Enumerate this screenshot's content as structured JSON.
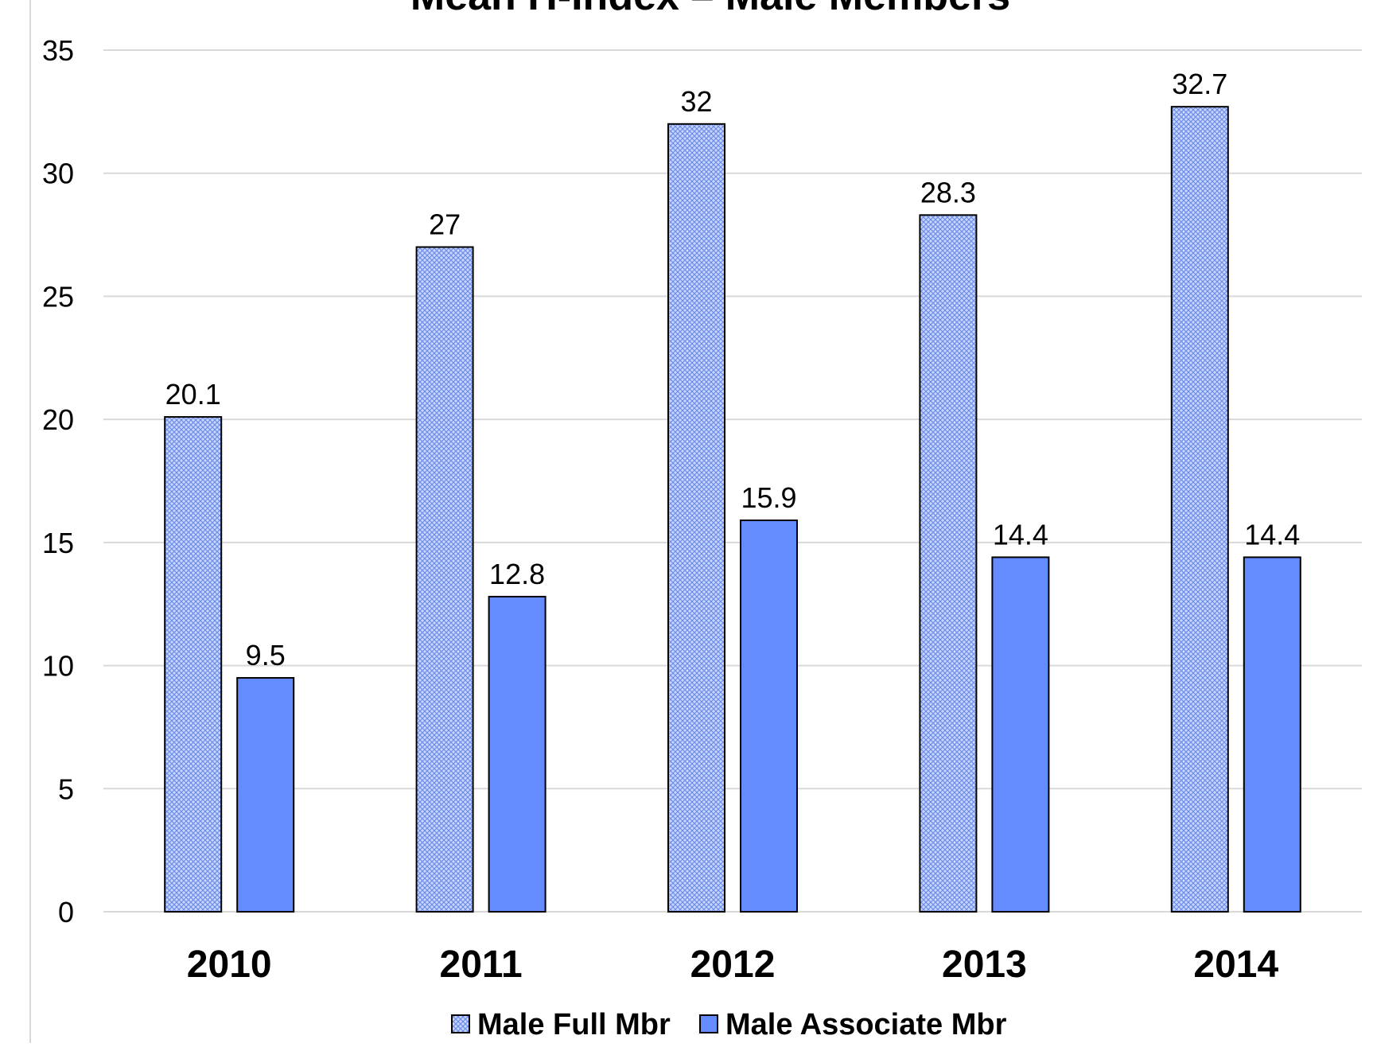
{
  "chart_data": {
    "type": "bar",
    "title": "Mean H-Index – Male Members",
    "categories": [
      "2010",
      "2011",
      "2012",
      "2013",
      "2014"
    ],
    "series": [
      {
        "name": "Male Full Mbr",
        "values": [
          20.1,
          27,
          32,
          28.3,
          32.7
        ],
        "pattern": "crosshatch",
        "color": "#a9c0ff"
      },
      {
        "name": "Male Associate Mbr",
        "values": [
          9.5,
          12.8,
          15.9,
          14.4,
          14.4
        ],
        "pattern": "solid",
        "color": "#648cff"
      }
    ],
    "data_labels": [
      [
        "20.1",
        "27",
        "32",
        "28.3",
        "32.7"
      ],
      [
        "9.5",
        "12.8",
        "15.9",
        "14.4",
        "14.4"
      ]
    ],
    "ylim": [
      0,
      35
    ],
    "yticks": [
      "0",
      "5",
      "10",
      "15",
      "20",
      "25",
      "30",
      "35"
    ],
    "xlabel": "",
    "ylabel": "",
    "grid": true,
    "grid_color": "#d9d9d9",
    "legend_position": "bottom"
  }
}
